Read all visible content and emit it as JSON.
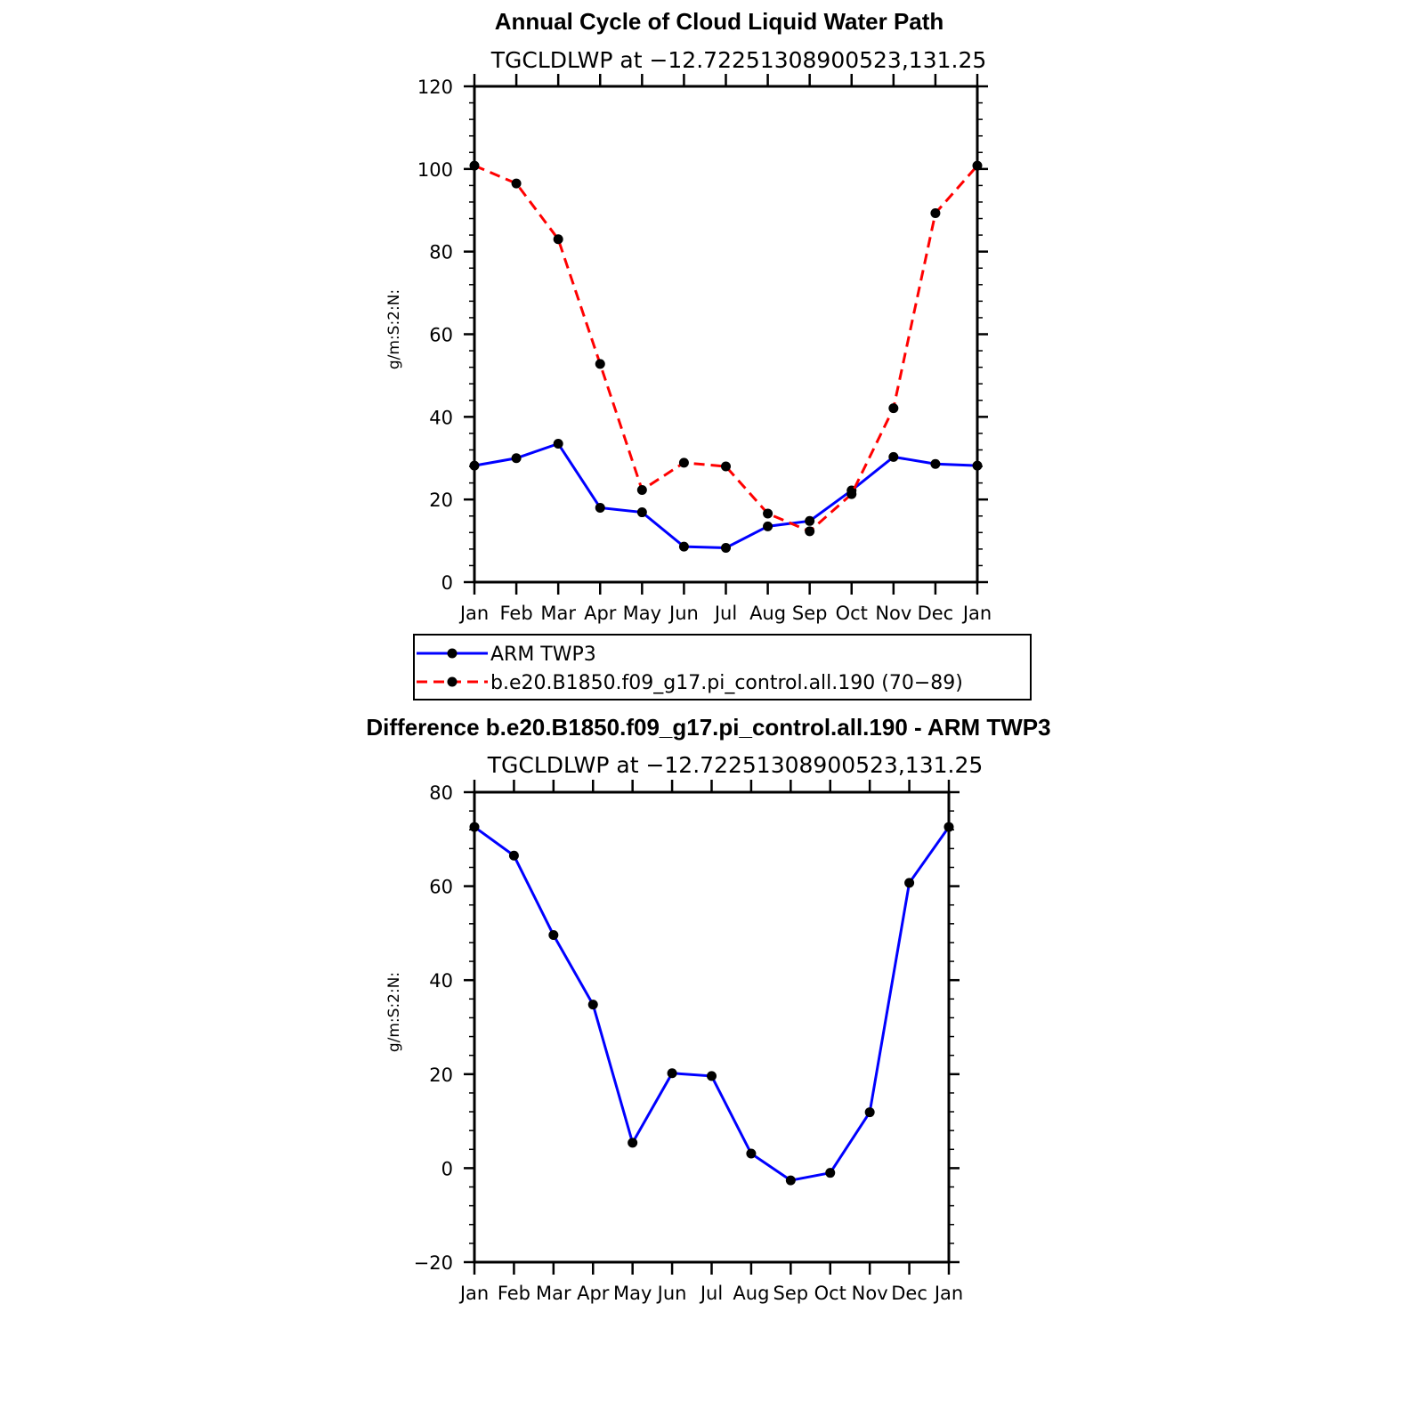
{
  "chart_data": [
    {
      "type": "line",
      "title": "Annual Cycle of Cloud Liquid Water Path",
      "subtitle": "TGCLDLWP at −12.72251308900523,131.25",
      "ylabel": "g/m:S:2:N:",
      "xlabel": "",
      "categories": [
        "Jan",
        "Feb",
        "Mar",
        "Apr",
        "May",
        "Jun",
        "Jul",
        "Aug",
        "Sep",
        "Oct",
        "Nov",
        "Dec",
        "Jan"
      ],
      "ylim": [
        0,
        120
      ],
      "yticks": [
        "0",
        "20",
        "40",
        "60",
        "80",
        "100",
        "120"
      ],
      "series": [
        {
          "name": "ARM TWP3",
          "color": "#0000ff",
          "dash": "solid",
          "values": [
            28.2,
            30.0,
            33.5,
            18.0,
            16.9,
            8.6,
            8.3,
            13.5,
            14.8,
            22.2,
            30.3,
            28.6,
            28.2
          ]
        },
        {
          "name": "b.e20.B1850.f09_g17.pi_control.all.190 (70−89)",
          "color": "#ff0000",
          "dash": "dashed",
          "values": [
            100.8,
            96.5,
            83.0,
            52.8,
            22.3,
            28.9,
            28.0,
            16.6,
            12.3,
            21.3,
            42.1,
            89.3,
            100.8
          ]
        }
      ],
      "legend": "below"
    },
    {
      "type": "line",
      "title": "Difference b.e20.B1850.f09_g17.pi_control.all.190 - ARM TWP3",
      "subtitle": "TGCLDLWP at −12.72251308900523,131.25",
      "ylabel": "g/m:S:2:N:",
      "xlabel": "",
      "categories": [
        "Jan",
        "Feb",
        "Mar",
        "Apr",
        "May",
        "Jun",
        "Jul",
        "Aug",
        "Sep",
        "Oct",
        "Nov",
        "Dec",
        "Jan"
      ],
      "ylim": [
        -20,
        80
      ],
      "yticks": [
        "−20",
        "0",
        "20",
        "40",
        "60",
        "80"
      ],
      "series": [
        {
          "color": "#0000ff",
          "dash": "solid",
          "values": [
            72.6,
            66.5,
            49.6,
            34.8,
            5.4,
            20.2,
            19.6,
            3.1,
            -2.6,
            -1.0,
            11.9,
            60.7,
            72.6
          ]
        }
      ]
    }
  ]
}
